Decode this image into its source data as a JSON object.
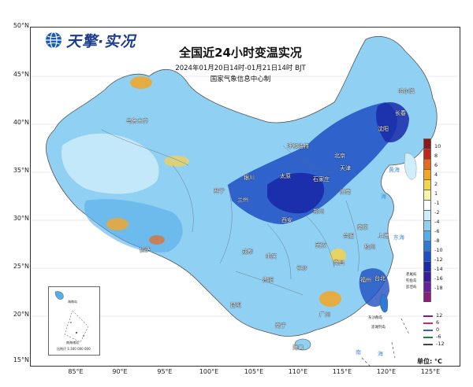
{
  "logo": {
    "text": "天擎·实况",
    "icon": "globe-icon"
  },
  "title": "全国近24小时变温实况",
  "subtitle": "2024年01月20日14时-01月21日14时 BJT",
  "source": "国家气象信息中心制",
  "lat_ticks": [
    "50°N",
    "45°N",
    "40°N",
    "35°N",
    "30°N",
    "25°N",
    "20°N",
    "15°N"
  ],
  "lon_ticks": [
    "85°E",
    "90°E",
    "95°E",
    "100°E",
    "105°E",
    "110°E",
    "115°E",
    "120°E",
    "125°E"
  ],
  "legend": {
    "labels": [
      "10",
      "8",
      "6",
      "4",
      "2",
      "1",
      "-1",
      "-2",
      "-4",
      "-6",
      "-8",
      "-10",
      "-12",
      "-14",
      "-16",
      "-18"
    ],
    "colors": [
      "#8a1a1a",
      "#c0281e",
      "#e86a1e",
      "#f5a623",
      "#f7d34a",
      "#fbf3a8",
      "#ffffff",
      "#cfeefb",
      "#8fd0f3",
      "#56aee9",
      "#2f7ad6",
      "#1f4fc2",
      "#1a2aa8",
      "#3b1f9a",
      "#6a1fa0",
      "#8a1f7a"
    ],
    "contours": [
      {
        "label": "12",
        "color": "#8a1a8a"
      },
      {
        "label": "6",
        "color": "#c03070"
      },
      {
        "label": "0",
        "color": "#3a5ad0"
      },
      {
        "label": "-6",
        "color": "#2a7a4a"
      },
      {
        "label": "-12",
        "color": "#444444"
      }
    ],
    "unit": "单位: °C"
  },
  "cities": [
    "乌鲁木齐",
    "呼和浩特",
    "北京",
    "天津",
    "石家庄",
    "济南",
    "太原",
    "银川",
    "西宁",
    "兰州",
    "郑州",
    "西安",
    "合肥",
    "南京",
    "上海",
    "杭州",
    "武汉",
    "成都",
    "重庆",
    "长沙",
    "南昌",
    "福州",
    "贵阳",
    "昆明",
    "南宁",
    "广州",
    "海口",
    "拉萨",
    "沈阳",
    "长春",
    "哈尔滨",
    "台北"
  ],
  "seas": [
    "黄海",
    "东海",
    "海",
    "南",
    "海"
  ],
  "islands": [
    "赤尾屿",
    "钓鱼岛",
    "彭佳屿",
    "东沙群岛",
    "澎湖列岛"
  ],
  "inset": {
    "labels": [
      "海南岛",
      "南海诸岛",
      "比例尺 1:300 000 000"
    ]
  }
}
